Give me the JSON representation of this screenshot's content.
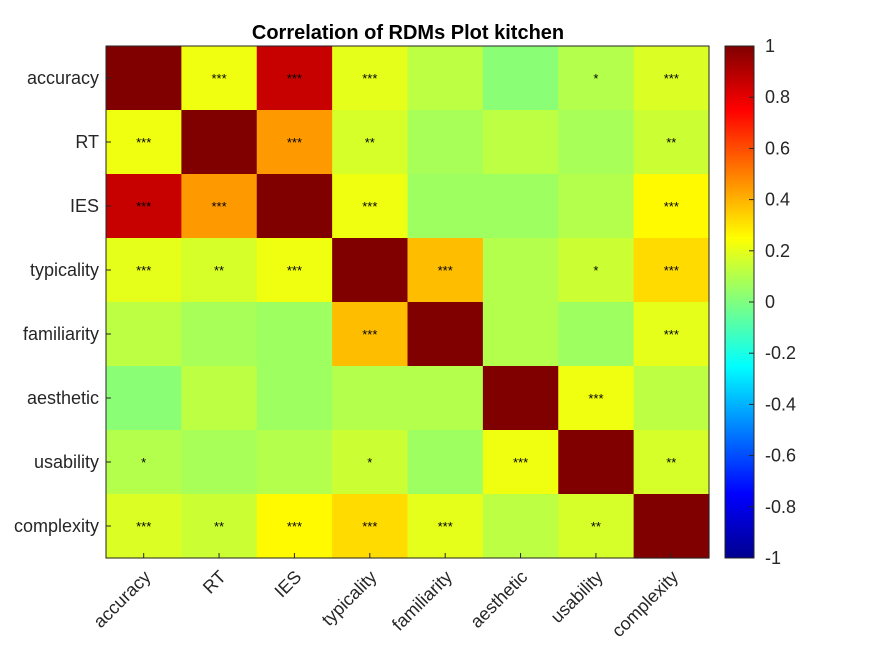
{
  "chart_data": {
    "type": "heatmap",
    "title": "Correlation of RDMs Plot kitchen",
    "xlabel": "",
    "ylabel": "",
    "labels": [
      "accuracy",
      "RT",
      "IES",
      "typicality",
      "familiarity",
      "aesthetic",
      "usability",
      "complexity"
    ],
    "values": [
      [
        1.0,
        0.22,
        0.86,
        0.2,
        0.12,
        0.02,
        0.1,
        0.18
      ],
      [
        0.22,
        1.0,
        0.45,
        0.17,
        0.08,
        0.12,
        0.08,
        0.15
      ],
      [
        0.86,
        0.45,
        1.0,
        0.22,
        0.06,
        0.06,
        0.1,
        0.26
      ],
      [
        0.2,
        0.17,
        0.22,
        1.0,
        0.38,
        0.1,
        0.15,
        0.32
      ],
      [
        0.12,
        0.08,
        0.06,
        0.38,
        1.0,
        0.1,
        0.06,
        0.2
      ],
      [
        0.02,
        0.12,
        0.06,
        0.1,
        0.1,
        1.0,
        0.22,
        0.12
      ],
      [
        0.1,
        0.08,
        0.1,
        0.15,
        0.06,
        0.22,
        1.0,
        0.17
      ],
      [
        0.18,
        0.15,
        0.26,
        0.32,
        0.2,
        0.12,
        0.17,
        1.0
      ]
    ],
    "significance": [
      [
        "",
        "***",
        "***",
        "***",
        "",
        "",
        "*",
        "***"
      ],
      [
        "***",
        "",
        "***",
        "**",
        "",
        "",
        "",
        "**"
      ],
      [
        "***",
        "***",
        "",
        "***",
        "",
        "",
        "",
        "***"
      ],
      [
        "***",
        "**",
        "***",
        "",
        "***",
        "",
        "*",
        "***"
      ],
      [
        "",
        "",
        "",
        "***",
        "",
        "",
        "",
        "***"
      ],
      [
        "",
        "",
        "",
        "",
        "",
        "",
        "***",
        ""
      ],
      [
        "*",
        "",
        "",
        "*",
        "",
        "***",
        "",
        "**"
      ],
      [
        "***",
        "**",
        "***",
        "***",
        "***",
        "",
        "**",
        ""
      ]
    ],
    "colorbar": {
      "colormap": "jet",
      "range": [
        -1,
        1
      ],
      "ticks": [
        1,
        0.8,
        0.6,
        0.4,
        0.2,
        0,
        -0.2,
        -0.4,
        -0.6,
        -0.8,
        -1
      ],
      "tick_labels": [
        "1",
        "0.8",
        "0.6",
        "0.4",
        "0.2",
        "0",
        "-0.2",
        "-0.4",
        "-0.6",
        "-0.8",
        "-1"
      ]
    }
  }
}
